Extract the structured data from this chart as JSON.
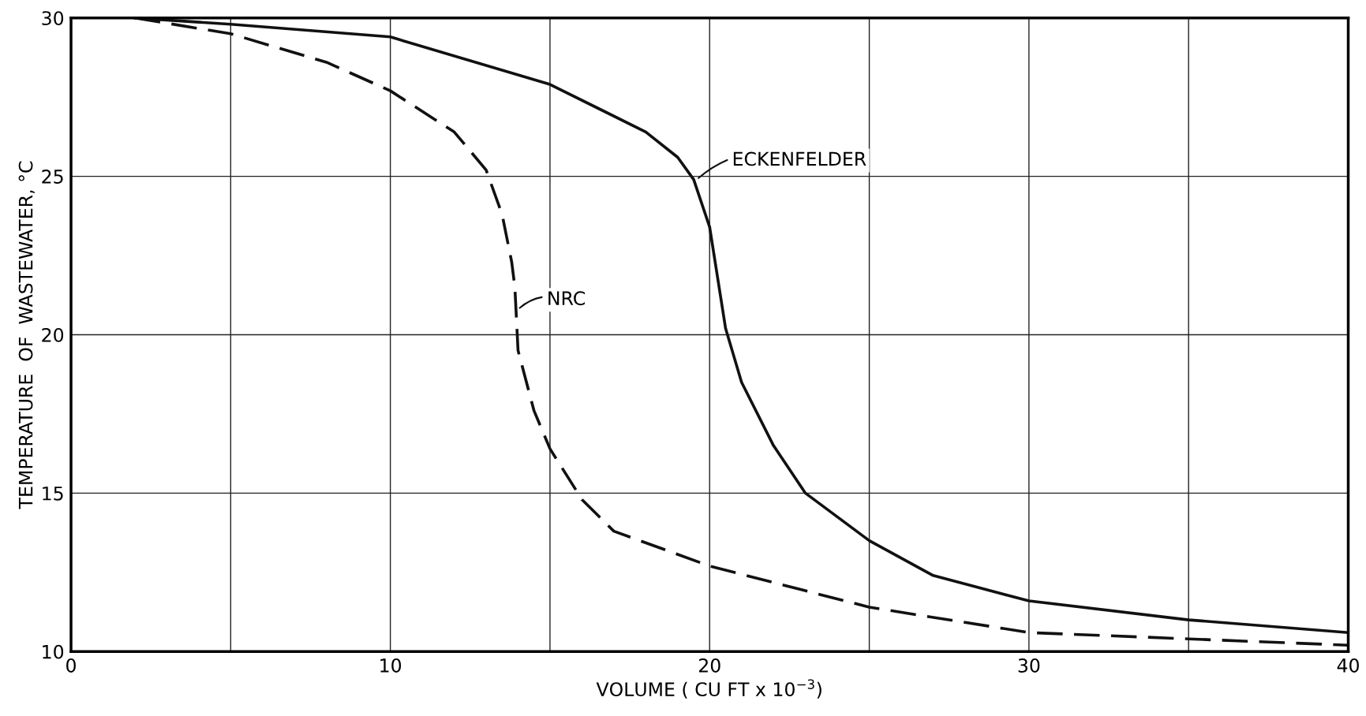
{
  "chart_data": {
    "type": "line",
    "xlabel": "VOLUME ( CU FT x 10$^{−3}$)",
    "ylabel": "TEMPERATURE  OF  WASTEWATER, °C",
    "xlim": [
      0,
      40
    ],
    "ylim": [
      10,
      30
    ],
    "xticks": [
      0,
      {
        "value": 5,
        "label": null
      },
      10,
      {
        "value": 15,
        "label": null
      },
      20,
      {
        "value": 25,
        "label": null
      },
      30,
      {
        "value": 35,
        "label": null
      },
      40
    ],
    "yticks": [
      10,
      15,
      20,
      25,
      30
    ],
    "grid": true,
    "legend": false,
    "marker": "none",
    "series": [
      {
        "color": "#111111",
        "line_style": "solid",
        "x": [
          2,
          5,
          10,
          15,
          18,
          19,
          19.5,
          20,
          20.5,
          21,
          22,
          23,
          25,
          27,
          30,
          35,
          40
        ],
        "values": [
          30,
          29.8,
          29.4,
          27.9,
          26.4,
          25.6,
          24.9,
          23.4,
          20.2,
          18.5,
          16.5,
          15.0,
          13.5,
          12.4,
          11.6,
          11.0,
          10.6
        ]
      },
      {
        "color": "#111111",
        "line_style": "dashed",
        "x": [
          2,
          5,
          8,
          10,
          12,
          13,
          13.5,
          13.8,
          13.9,
          14.0,
          14.5,
          15,
          16,
          17,
          20,
          25,
          30,
          35,
          40
        ],
        "values": [
          30,
          29.5,
          28.6,
          27.7,
          26.4,
          25.2,
          23.8,
          22.3,
          21.5,
          19.5,
          17.6,
          16.4,
          14.8,
          13.8,
          12.7,
          11.4,
          10.6,
          10.4,
          10.2
        ]
      }
    ],
    "annotations": [
      {
        "text": "ECKENFELDER",
        "x": 19.6,
        "y": 24.9
      },
      {
        "text": "NRC",
        "x": 14.0,
        "y": 20.8
      }
    ]
  }
}
